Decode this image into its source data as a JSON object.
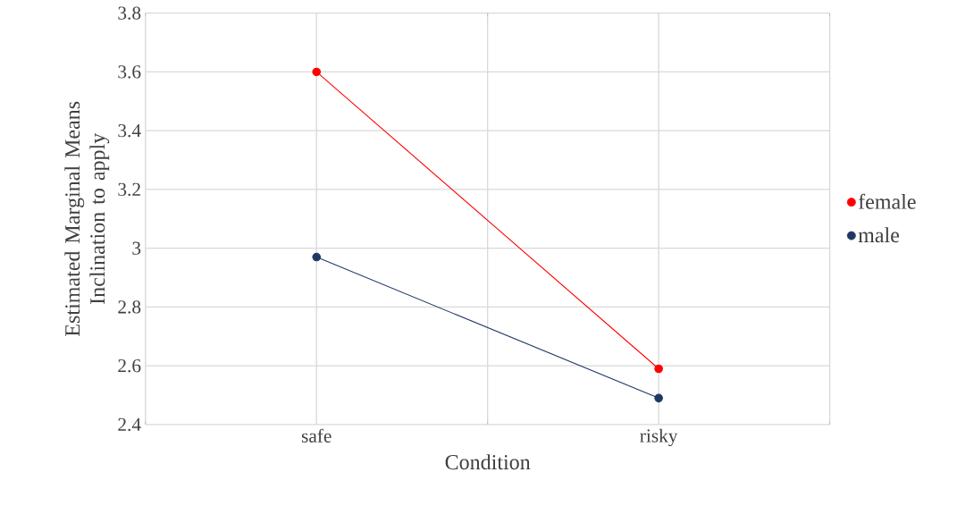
{
  "chart_data": {
    "type": "line",
    "xlabel": "Condition",
    "ylabel": "Estimated Marginal Means Inclination to apply",
    "categories": [
      "safe",
      "risky"
    ],
    "series": [
      {
        "name": "female",
        "color": "#ff0000",
        "values": [
          3.6,
          2.59
        ]
      },
      {
        "name": "male",
        "color": "#1f3864",
        "values": [
          2.97,
          2.49
        ]
      }
    ],
    "ylim": [
      2.4,
      3.8
    ],
    "yticks": [
      2.4,
      2.6,
      2.8,
      3,
      3.2,
      3.4,
      3.6,
      3.8
    ],
    "grid": true,
    "legend": "right",
    "marker": "circle",
    "line_style": "solid"
  }
}
